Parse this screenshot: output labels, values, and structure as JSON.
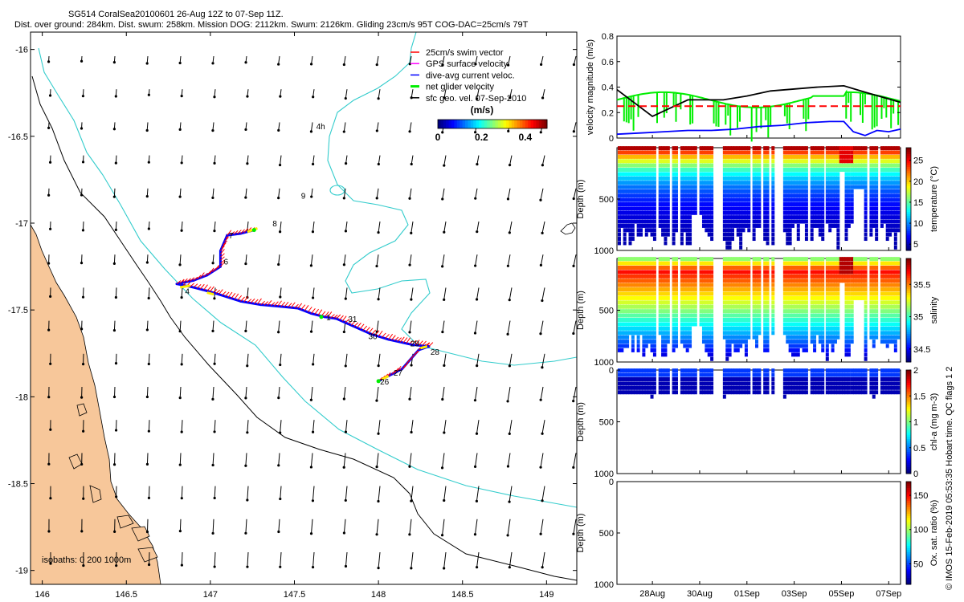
{
  "header": {
    "title": "SG514 CoralSea20100601 26-Aug 12Z to 07-Sep 11Z.",
    "subtitle": "Dist. over ground: 284km. Dist. swum: 258km. Mission DOG: 2112km. Swum: 2126km. Gliding 23cm/s 95T COG-DAC=25cm/s 79T"
  },
  "watermark": "© IMOS 15-Feb-2019 05:53:35 Hobart time. QC flags 1  2",
  "colors": {
    "land": "#f7c79a",
    "isobath200": "#33cccc",
    "isobath1000": "#000000",
    "swim": "#ff0000",
    "gps": "#ff00ff",
    "dac": "#0000ff",
    "net": "#00ee00"
  },
  "chart_data": [
    {
      "type": "map",
      "name": "glider-track-map",
      "xlim": [
        145.93,
        149.18
      ],
      "ylim": [
        -19.08,
        -15.9
      ],
      "xticks": [
        146,
        146.5,
        147,
        147.5,
        148,
        148.5,
        149
      ],
      "xtick_labels": [
        "146",
        "146.5",
        "147",
        "147.5",
        "148",
        "148.5",
        "149"
      ],
      "yticks": [
        -16,
        -16.5,
        -17,
        -17.5,
        -18,
        -18.5,
        -19
      ],
      "ytick_labels": [
        "-16",
        "-16.5",
        "-17",
        "-17.5",
        "-18",
        "-18.5",
        "-19"
      ],
      "legend": {
        "position": "top-right",
        "entries": [
          {
            "label": "25cm/s swim vector",
            "color": "#ff0000"
          },
          {
            "label": "GPS surface velocity",
            "color": "#ff00ff"
          },
          {
            "label": "dive-avg current veloc.",
            "color": "#0000ff"
          },
          {
            "label": "net glider velocity",
            "color": "#00ee00"
          },
          {
            "label": "sfc geo. vel. 07-Sep-2010",
            "color": "#000000"
          }
        ]
      },
      "colorbar": {
        "title": "(m/s)",
        "min": 0,
        "max": 0.5,
        "tick_labels": [
          "0",
          "0.2",
          "0.4"
        ],
        "tick_values": [
          0,
          0.2,
          0.4
        ]
      },
      "isobath_label": "isobaths: 0    200  1000m",
      "day_labels": [
        {
          "label": "1",
          "lon": 147.68,
          "lat": -17.54
        },
        {
          "label": "31",
          "lon": 147.81,
          "lat": -17.55
        },
        {
          "label": "30",
          "lon": 147.93,
          "lat": -17.65
        },
        {
          "label": "29",
          "lon": 148.18,
          "lat": -17.69
        },
        {
          "label": "28",
          "lon": 148.3,
          "lat": -17.74
        },
        {
          "label": "27",
          "lon": 148.08,
          "lat": -17.86
        },
        {
          "label": "26",
          "lon": 148.0,
          "lat": -17.91
        },
        {
          "label": "4",
          "lon": 146.84,
          "lat": -17.39
        },
        {
          "label": "6",
          "lon": 147.07,
          "lat": -17.22
        },
        {
          "label": "7",
          "lon": 147.1,
          "lat": -17.07
        },
        {
          "label": "8",
          "lon": 147.36,
          "lat": -17.0
        },
        {
          "label": "9",
          "lon": 147.53,
          "lat": -16.84
        },
        {
          "label": "4h",
          "lon": 147.62,
          "lat": -16.44
        }
      ],
      "track": [
        [
          148.0,
          -17.91
        ],
        [
          148.08,
          -17.87
        ],
        [
          148.14,
          -17.84
        ],
        [
          148.24,
          -17.73
        ],
        [
          148.3,
          -17.71
        ],
        [
          148.2,
          -17.7
        ],
        [
          148.06,
          -17.67
        ],
        [
          147.96,
          -17.64
        ],
        [
          147.82,
          -17.58
        ],
        [
          147.75,
          -17.55
        ],
        [
          147.68,
          -17.54
        ],
        [
          147.6,
          -17.52
        ],
        [
          147.52,
          -17.49
        ],
        [
          147.42,
          -17.48
        ],
        [
          147.3,
          -17.47
        ],
        [
          147.18,
          -17.45
        ],
        [
          147.05,
          -17.41
        ],
        [
          146.98,
          -17.39
        ],
        [
          146.9,
          -17.37
        ],
        [
          146.8,
          -17.35
        ],
        [
          146.9,
          -17.33
        ],
        [
          146.98,
          -17.3
        ],
        [
          147.06,
          -17.25
        ],
        [
          147.06,
          -17.16
        ],
        [
          147.1,
          -17.07
        ],
        [
          147.18,
          -17.06
        ],
        [
          147.26,
          -17.04
        ]
      ]
    },
    {
      "type": "line",
      "name": "velocity-magnitude",
      "ylabel": "velocity magnitude (m/s)",
      "ylim": [
        0,
        0.8
      ],
      "yticks": [
        0,
        0.2,
        0.4,
        0.6,
        0.8
      ],
      "ytick_labels": [
        "0",
        "0.2",
        "0.4",
        "0.6",
        "0.8"
      ],
      "xlim": [
        0,
        12
      ],
      "x_unit": "days since 26-Aug 12Z",
      "series": [
        {
          "name": "net glider velocity",
          "color": "#000000",
          "x": [
            0,
            1.5,
            3,
            4.5,
            5.5,
            6.5,
            8.5,
            9.6,
            10.5,
            12
          ],
          "values": [
            0.38,
            0.17,
            0.3,
            0.3,
            0.33,
            0.37,
            0.4,
            0.41,
            0.36,
            0.28
          ]
        },
        {
          "name": "dive-avg current",
          "color": "#0000ff",
          "x": [
            0,
            1,
            2,
            3,
            4,
            5,
            6,
            7,
            8,
            9,
            9.6,
            10,
            10.5,
            11,
            11.5,
            12
          ],
          "values": [
            0.03,
            0.04,
            0.05,
            0.06,
            0.06,
            0.07,
            0.09,
            0.1,
            0.12,
            0.13,
            0.13,
            0.05,
            0.02,
            0.06,
            0.05,
            0.07
          ]
        },
        {
          "name": "swim speed",
          "color": "#ff0000",
          "dashed": true,
          "x": [
            0,
            12
          ],
          "values": [
            0.25,
            0.25
          ]
        }
      ]
    },
    {
      "type": "heatmap",
      "name": "temperature-section",
      "ylabel": "Depth (m)",
      "ylim": [
        0,
        1000
      ],
      "yticks": [
        500,
        1000
      ],
      "colorbar_label": "temperature (°C)",
      "colorbar_range": [
        3.5,
        28
      ],
      "colorbar_ticks": [
        "5",
        "10",
        "15",
        "20",
        "25"
      ],
      "colorbar_tick_values": [
        5,
        10,
        15,
        20,
        25
      ]
    },
    {
      "type": "heatmap",
      "name": "salinity-section",
      "ylabel": "Depth (m)",
      "ylim": [
        0,
        1000
      ],
      "yticks": [
        500,
        1000
      ],
      "colorbar_label": "salinity",
      "colorbar_range": [
        34.3,
        35.9
      ],
      "colorbar_ticks": [
        "34.5",
        "35",
        "35.5"
      ],
      "colorbar_tick_values": [
        34.5,
        35,
        35.5
      ]
    },
    {
      "type": "heatmap",
      "name": "chlorophyll-section",
      "ylabel": "Depth (m)",
      "ylim": [
        0,
        1000
      ],
      "yticks": [
        0,
        500,
        1000
      ],
      "colorbar_label": "chl-a (mg m-3)",
      "colorbar_range": [
        0,
        2
      ],
      "colorbar_ticks": [
        "0",
        "0.5",
        "1",
        "1.5",
        "2"
      ],
      "colorbar_tick_values": [
        0,
        0.5,
        1,
        1.5,
        2
      ]
    },
    {
      "type": "heatmap",
      "name": "oxygen-section",
      "ylabel": "Depth (m)",
      "ylim": [
        0,
        1000
      ],
      "yticks": [
        0,
        500,
        1000
      ],
      "colorbar_label": "Ox. sat. ratio (%)",
      "colorbar_range": [
        20,
        170
      ],
      "colorbar_ticks": [
        "50",
        "100",
        "150"
      ],
      "colorbar_tick_values": [
        50,
        100,
        150
      ],
      "x_tick_labels": [
        "28Aug",
        "30Aug",
        "01Sep",
        "03Sep",
        "05Sep",
        "07Sep"
      ],
      "x_tick_values": [
        1.5,
        3.5,
        5.5,
        7.5,
        9.5,
        11.5
      ]
    }
  ]
}
